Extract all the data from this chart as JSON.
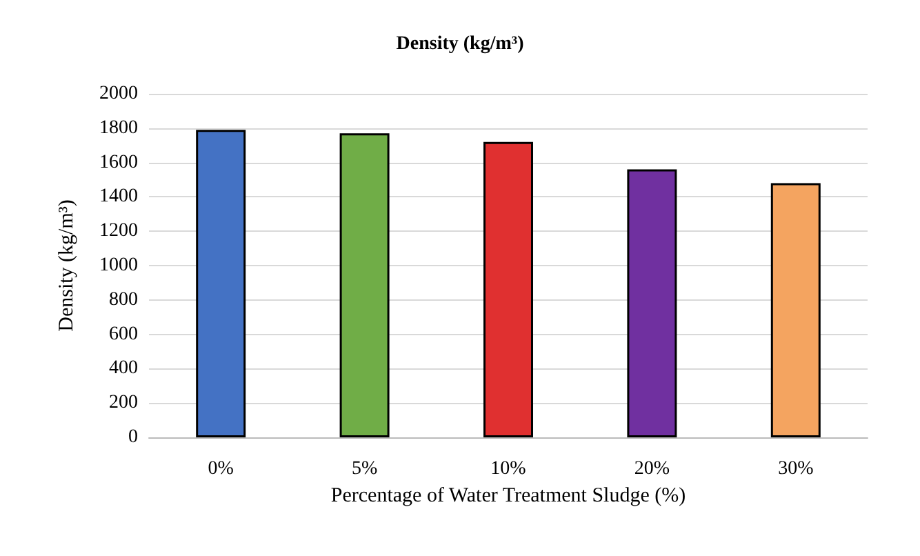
{
  "chart_data": {
    "type": "bar",
    "title": "Density (kg/m³)",
    "xlabel": "Percentage of Water Treatment Sludge (%)",
    "ylabel": "Density (kg/m³)",
    "categories": [
      "0%",
      "5%",
      "10%",
      "20%",
      "30%"
    ],
    "values": [
      1790,
      1770,
      1720,
      1560,
      1480
    ],
    "colors": [
      "#4472c4",
      "#70ad47",
      "#e03030",
      "#7030a0",
      "#f4a460"
    ],
    "ylim": [
      0,
      2000
    ],
    "yticks": [
      0,
      200,
      400,
      600,
      800,
      1000,
      1200,
      1400,
      1600,
      1800,
      2000
    ],
    "grid": "y"
  }
}
